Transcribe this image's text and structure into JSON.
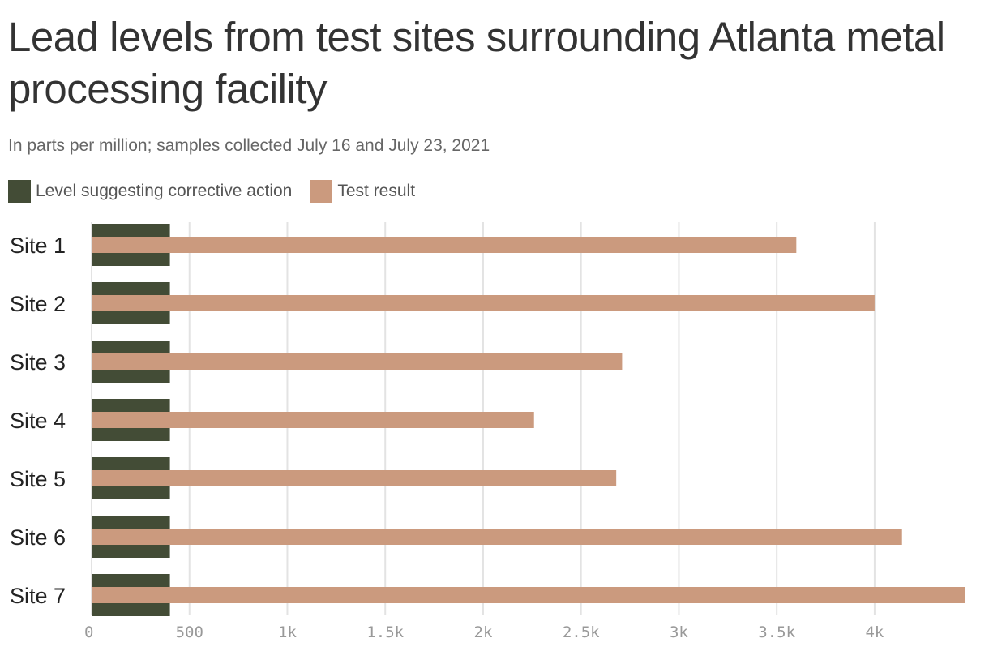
{
  "chart_data": {
    "type": "bar",
    "orientation": "horizontal",
    "title": "Lead levels from test sites surrounding Atlanta metal processing facility",
    "subtitle": "In parts per million; samples collected July 16 and July 23, 2021",
    "categories": [
      "Site 1",
      "Site 2",
      "Site 3",
      "Site 4",
      "Site 5",
      "Site 6",
      "Site 7"
    ],
    "series": [
      {
        "name": "Level suggesting corrective action",
        "color": "#434c36",
        "values": [
          400,
          400,
          400,
          400,
          400,
          400,
          400
        ]
      },
      {
        "name": "Test result",
        "color": "#cb9a7e",
        "values": [
          3600,
          4000,
          2710,
          2260,
          2680,
          4140,
          4460
        ]
      }
    ],
    "xlim": [
      0,
      4460
    ],
    "xticks": [
      0,
      500,
      1000,
      1500,
      2000,
      2500,
      3000,
      3500,
      4000
    ],
    "xtick_labels": [
      "0",
      "500",
      "1k",
      "1.5k",
      "2k",
      "2.5k",
      "3k",
      "3.5k",
      "4k"
    ],
    "grid": true,
    "legend_position": "top-left"
  }
}
